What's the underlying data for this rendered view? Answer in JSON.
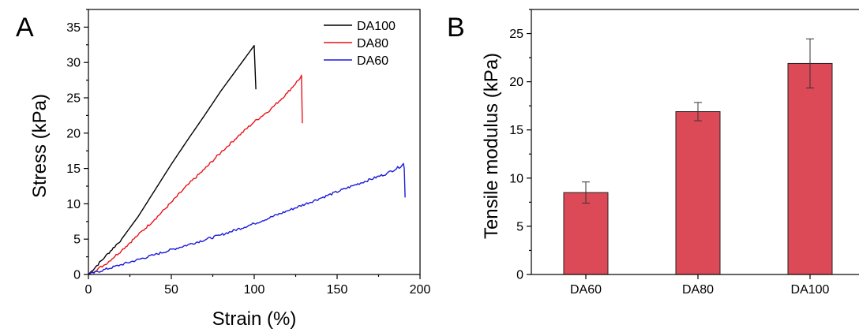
{
  "chart_data": [
    {
      "panel": "A",
      "type": "line",
      "xlabel": "Strain (%)",
      "ylabel": "Stress (kPa)",
      "xlim": [
        0,
        200
      ],
      "ylim": [
        0,
        37.5
      ],
      "xticks": [
        "0",
        "50",
        "100",
        "150",
        "200"
      ],
      "yticks": [
        "0",
        "5",
        "10",
        "15",
        "20",
        "25",
        "30",
        "35"
      ],
      "legend_position": "top-right",
      "series": [
        {
          "name": "DA100",
          "color": "#000000",
          "x": [
            0,
            10,
            20,
            30,
            40,
            50,
            60,
            70,
            80,
            90,
            100,
            100,
            101
          ],
          "y": [
            0,
            2.5,
            5.0,
            8.2,
            11.9,
            15.6,
            19.1,
            22.5,
            26.0,
            29.2,
            32.4,
            32.2,
            26.2
          ]
        },
        {
          "name": "DA80",
          "color": "#e8141a",
          "x": [
            0,
            10,
            20,
            30,
            40,
            50,
            60,
            70,
            80,
            90,
            100,
            110,
            120,
            128,
            128.5,
            129
          ],
          "y": [
            0,
            1.4,
            3.4,
            5.6,
            7.8,
            10.2,
            12.7,
            14.9,
            17.3,
            19.5,
            21.6,
            23.4,
            25.7,
            27.9,
            28.2,
            21.4
          ]
        },
        {
          "name": "DA60",
          "color": "#1a1adb",
          "x": [
            0,
            20,
            40,
            60,
            80,
            100,
            120,
            140,
            160,
            180,
            189,
            190,
            190.5,
            191
          ],
          "y": [
            0,
            1.4,
            2.8,
            4.2,
            5.6,
            7.2,
            9.0,
            10.8,
            12.6,
            14.3,
            15.4,
            15.7,
            15.0,
            10.9
          ]
        }
      ]
    },
    {
      "panel": "B",
      "type": "bar",
      "ylabel": "Tensile modulus (kPa)",
      "ylim": [
        0,
        27.5
      ],
      "yticks": [
        "0",
        "5",
        "10",
        "15",
        "20",
        "25"
      ],
      "categories": [
        "DA60",
        "DA80",
        "DA100"
      ],
      "values": [
        8.5,
        16.9,
        21.9
      ],
      "errors": [
        1.1,
        0.95,
        2.55
      ],
      "bar_color": "#dc4a58"
    }
  ]
}
